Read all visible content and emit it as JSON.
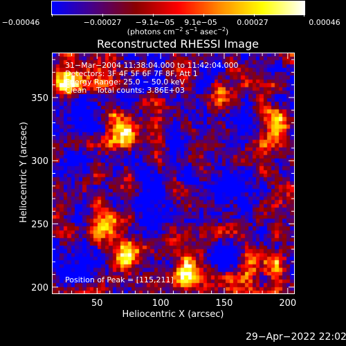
{
  "colorbar": {
    "ticks": [
      "−0.00046",
      "−0.00027",
      "−9.1e−05",
      "9.1e−05",
      "0.00027",
      "0.00046"
    ],
    "units_text": "(photons cm",
    "units_sup1": "−2",
    "units_mid": " s",
    "units_sup2": "−1",
    "units_end": " asec",
    "units_sup3": "−2",
    "units_close": ")",
    "colors": [
      "#0000ff",
      "#4b0082",
      "#8b0000",
      "#ff0000",
      "#ff8c00",
      "#ffff00",
      "#ffffff"
    ]
  },
  "chart_data": {
    "type": "heatmap",
    "title": "Reconstructed RHESSI Image",
    "xlabel": "Heliocentric X (arcsec)",
    "ylabel": "Heliocentric Y (arcsec)",
    "xlim": [
      15,
      205
    ],
    "ylim": [
      195,
      385
    ],
    "x_ticks": [
      50,
      100,
      150,
      200
    ],
    "y_ticks": [
      200,
      250,
      300,
      350
    ],
    "value_range": [
      -0.00046,
      0.00046
    ],
    "info_lines": [
      "31−Mar−2004 11:38:04.000 to 11:42:04.000",
      "Detectors: 3F 4F 5F 6F 7F 8F, Att 1",
      "Energy Range: 25.0 − 50.0 keV",
      "Clean    Total counts: 3.86E+03"
    ],
    "peak_label": "Position of Peak = [115,211]",
    "peak_position": [
      115,
      211
    ],
    "date_stamp": "29−Apr−2022 22:02"
  }
}
